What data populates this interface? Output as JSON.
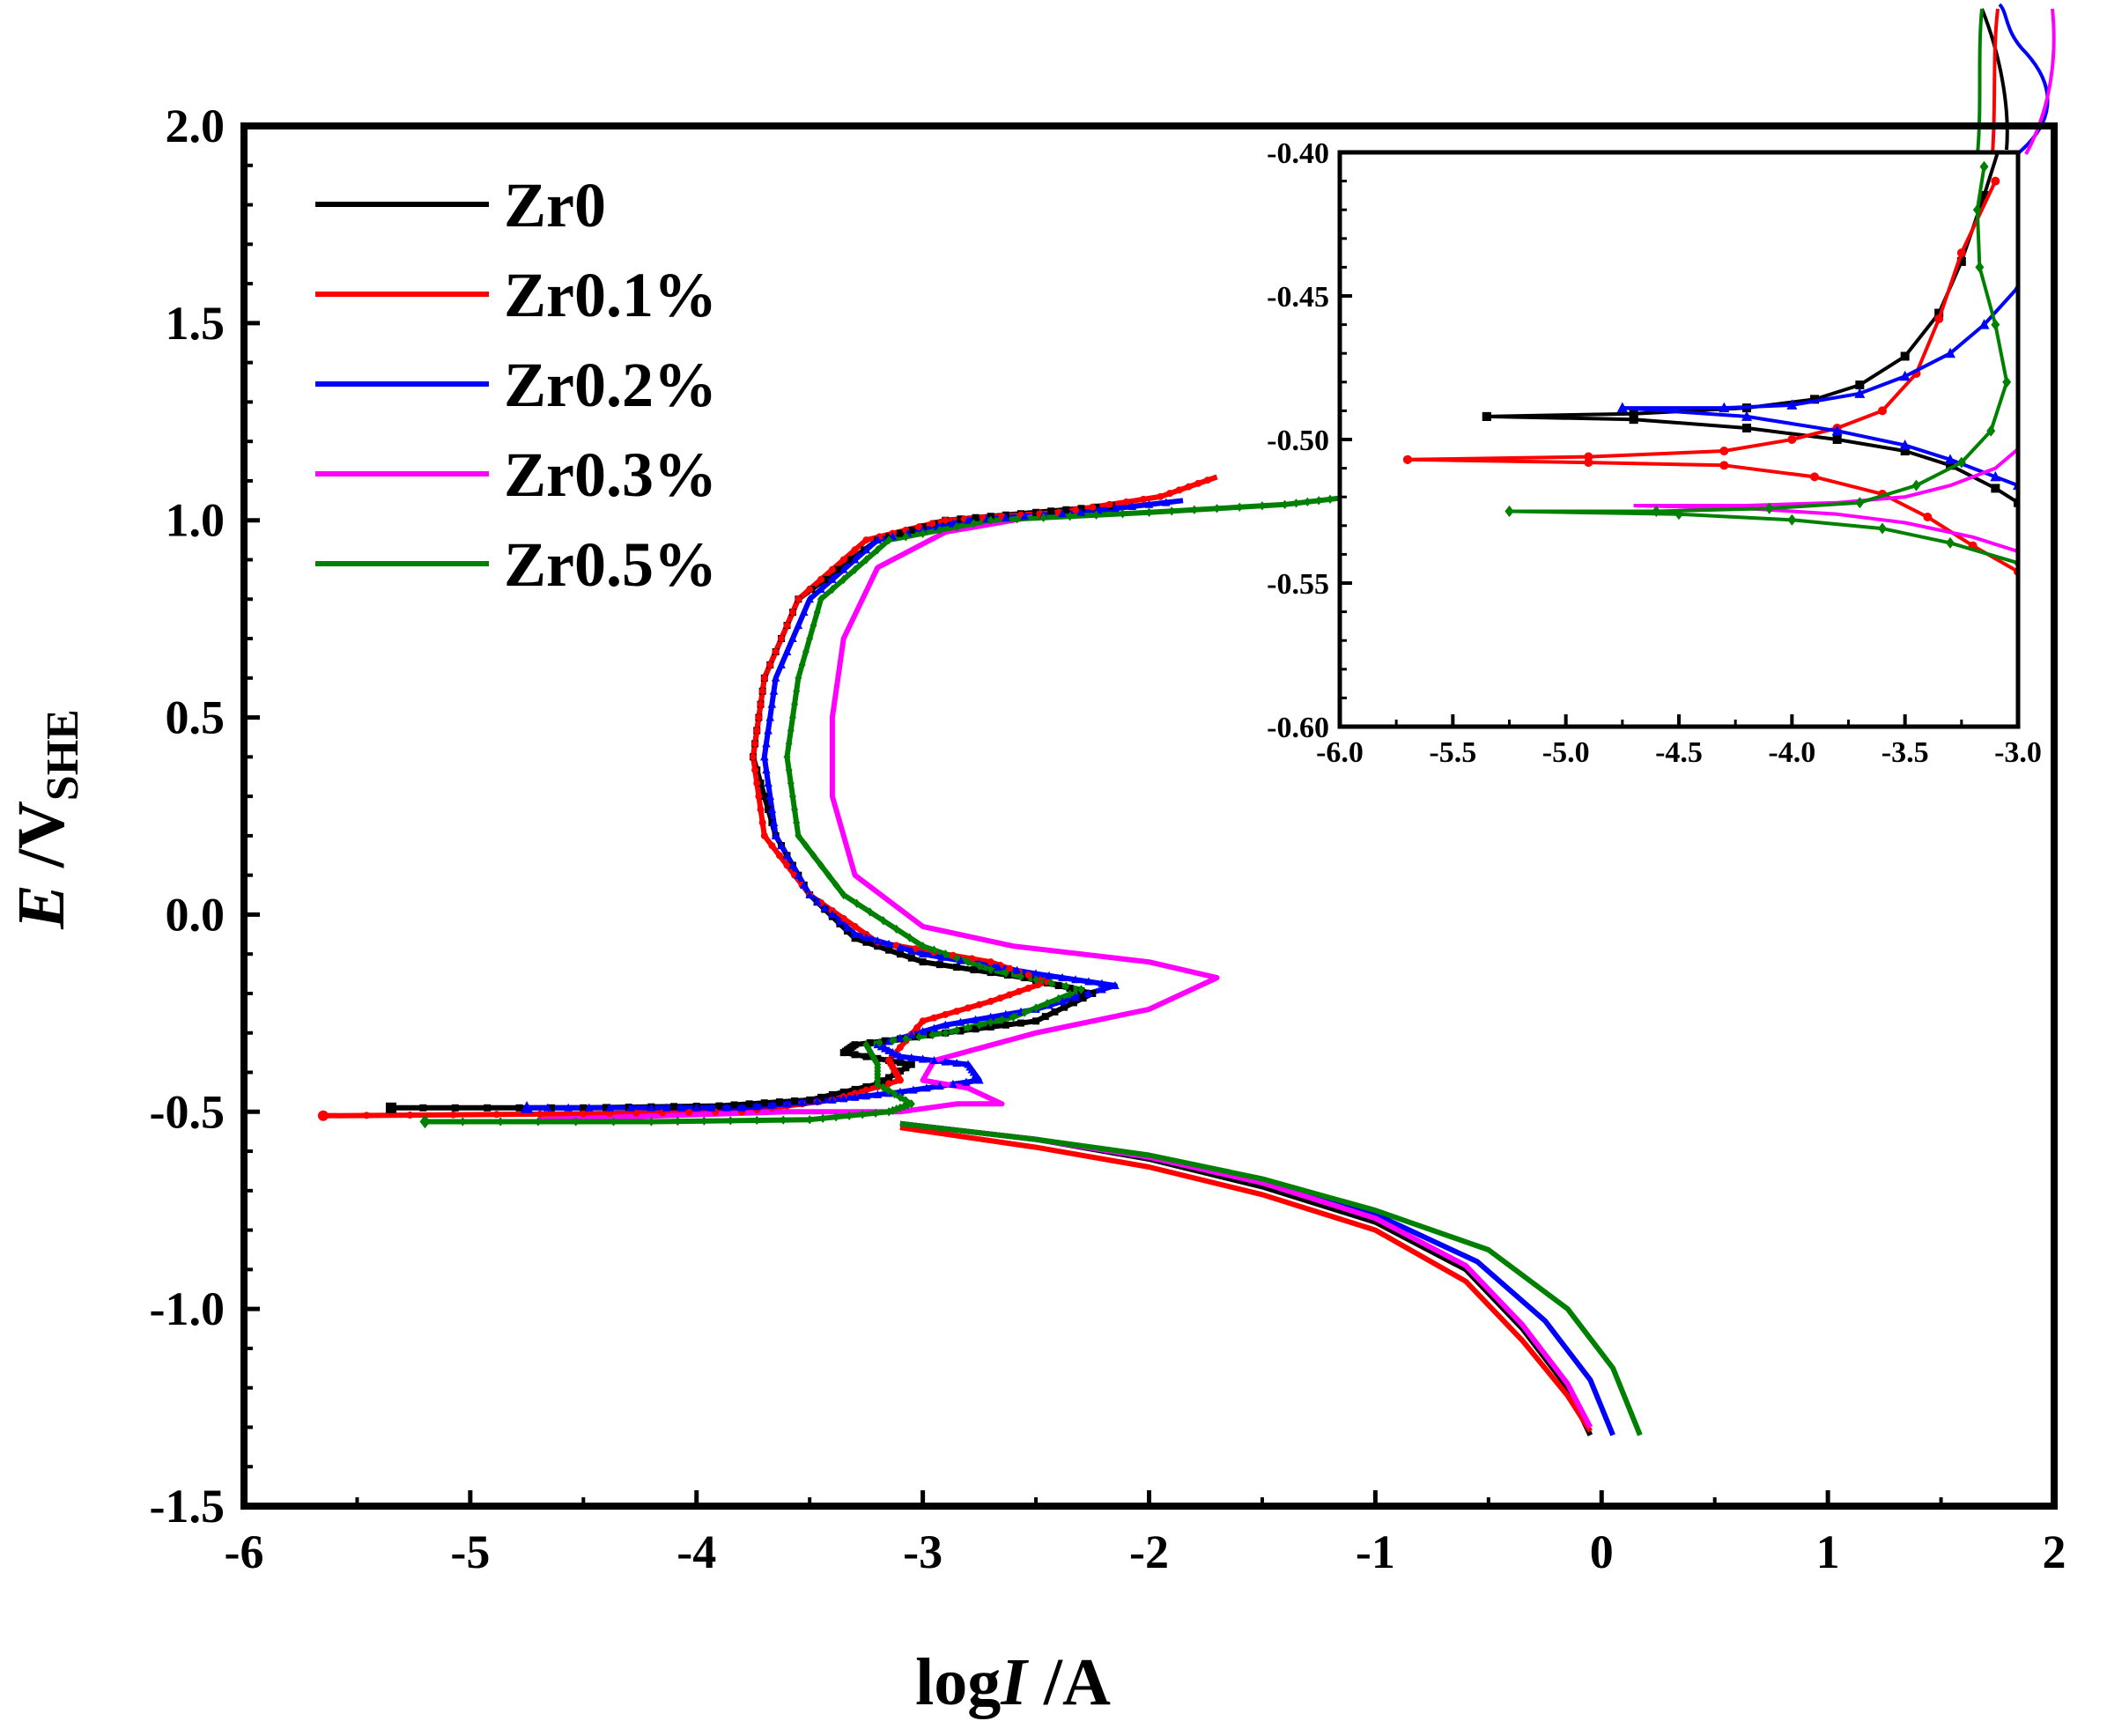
{
  "chart_data": {
    "type": "line",
    "xlabel_parts": [
      "log",
      "I",
      " /A"
    ],
    "ylabel_parts": [
      "E",
      " /V",
      "SHE"
    ],
    "xlim": [
      -6,
      2
    ],
    "ylim": [
      -1.5,
      2.0
    ],
    "x_ticks": [
      "-6",
      "-5",
      "-4",
      "-3",
      "-2",
      "-1",
      "0",
      "1",
      "2"
    ],
    "y_ticks": [
      "-1.5",
      "-1.0",
      "-0.5",
      "0.0",
      "0.5",
      "1.0",
      "1.5",
      "2.0"
    ],
    "colors": {
      "Zr0": "#000000",
      "Zr0.1%": "#ff0000",
      "Zr0.2%": "#0000ff",
      "Zr0.3%": "#ff00ff",
      "Zr0.5%": "#008000"
    },
    "legend": [
      "Zr0",
      "Zr0.1%",
      "Zr0.2%",
      "Zr0.3%",
      "Zr0.5%"
    ],
    "series": [
      {
        "name": "Zr0",
        "marker": "square",
        "points": [
          [
            -5.35,
            -0.49
          ],
          [
            -4.5,
            -0.49
          ],
          [
            -3.9,
            -0.485
          ],
          [
            -3.5,
            -0.47
          ],
          [
            -3.2,
            -0.43
          ],
          [
            -3.05,
            -0.38
          ],
          [
            -3.35,
            -0.35
          ],
          [
            -3.3,
            -0.33
          ],
          [
            -2.9,
            -0.3
          ],
          [
            -2.5,
            -0.27
          ],
          [
            -2.25,
            -0.2
          ],
          [
            -2.55,
            -0.16
          ],
          [
            -3.0,
            -0.12
          ],
          [
            -3.3,
            -0.06
          ],
          [
            -3.5,
            0.05
          ],
          [
            -3.65,
            0.2
          ],
          [
            -3.75,
            0.4
          ],
          [
            -3.7,
            0.6
          ],
          [
            -3.55,
            0.8
          ],
          [
            -3.2,
            0.95
          ],
          [
            -2.9,
            1.0
          ],
          [
            -2.5,
            1.02
          ],
          [
            -2.1,
            1.04
          ]
        ]
      },
      {
        "name": "Zr0.1%",
        "marker": "circle",
        "points": [
          [
            -5.65,
            -0.51
          ],
          [
            -4.5,
            -0.505
          ],
          [
            -3.8,
            -0.5
          ],
          [
            -3.4,
            -0.47
          ],
          [
            -3.1,
            -0.42
          ],
          [
            -3.15,
            -0.37
          ],
          [
            -3.0,
            -0.27
          ],
          [
            -2.7,
            -0.22
          ],
          [
            -2.45,
            -0.17
          ],
          [
            -2.7,
            -0.12
          ],
          [
            -3.2,
            -0.07
          ],
          [
            -3.5,
            0.05
          ],
          [
            -3.7,
            0.2
          ],
          [
            -3.75,
            0.4
          ],
          [
            -3.7,
            0.6
          ],
          [
            -3.55,
            0.8
          ],
          [
            -3.25,
            0.95
          ],
          [
            -2.9,
            1.0
          ],
          [
            -2.4,
            1.02
          ],
          [
            -1.95,
            1.06
          ],
          [
            -1.7,
            1.11
          ]
        ]
      },
      {
        "name": "Zr0.2%",
        "marker": "triangle",
        "points": [
          [
            -4.75,
            -0.49
          ],
          [
            -4.2,
            -0.49
          ],
          [
            -3.8,
            -0.49
          ],
          [
            -3.4,
            -0.47
          ],
          [
            -3.1,
            -0.45
          ],
          [
            -2.75,
            -0.42
          ],
          [
            -2.8,
            -0.38
          ],
          [
            -3.1,
            -0.36
          ],
          [
            -3.2,
            -0.33
          ],
          [
            -2.9,
            -0.28
          ],
          [
            -2.5,
            -0.24
          ],
          [
            -2.15,
            -0.18
          ],
          [
            -2.5,
            -0.15
          ],
          [
            -3.0,
            -0.1
          ],
          [
            -3.3,
            -0.05
          ],
          [
            -3.5,
            0.05
          ],
          [
            -3.65,
            0.2
          ],
          [
            -3.7,
            0.4
          ],
          [
            -3.65,
            0.6
          ],
          [
            -3.5,
            0.8
          ],
          [
            -3.2,
            0.95
          ],
          [
            -2.8,
            1.0
          ],
          [
            -2.3,
            1.02
          ],
          [
            -1.85,
            1.05
          ]
        ]
      },
      {
        "name": "Zr0.3%",
        "marker": "none",
        "points": [
          [
            -4.7,
            -0.52
          ],
          [
            -3.6,
            -0.5
          ],
          [
            -3.1,
            -0.5
          ],
          [
            -2.85,
            -0.48
          ],
          [
            -2.65,
            -0.48
          ],
          [
            -2.8,
            -0.44
          ],
          [
            -3.0,
            -0.42
          ],
          [
            -2.95,
            -0.37
          ],
          [
            -2.5,
            -0.3
          ],
          [
            -2.0,
            -0.24
          ],
          [
            -1.7,
            -0.16
          ],
          [
            -2.0,
            -0.12
          ],
          [
            -2.6,
            -0.08
          ],
          [
            -3.0,
            -0.03
          ],
          [
            -3.3,
            0.1
          ],
          [
            -3.4,
            0.3
          ],
          [
            -3.4,
            0.5
          ],
          [
            -3.35,
            0.7
          ],
          [
            -3.2,
            0.88
          ],
          [
            -2.9,
            0.97
          ],
          [
            -2.5,
            1.01
          ]
        ]
      },
      {
        "name": "Zr0.5%",
        "marker": "diamond",
        "points": [
          [
            -5.2,
            -0.525
          ],
          [
            -4.2,
            -0.525
          ],
          [
            -3.5,
            -0.52
          ],
          [
            -3.15,
            -0.5
          ],
          [
            -3.05,
            -0.48
          ],
          [
            -3.2,
            -0.43
          ],
          [
            -3.2,
            -0.38
          ],
          [
            -3.25,
            -0.33
          ],
          [
            -2.9,
            -0.3
          ],
          [
            -2.6,
            -0.26
          ],
          [
            -2.3,
            -0.19
          ],
          [
            -2.7,
            -0.14
          ],
          [
            -3.0,
            -0.08
          ],
          [
            -3.35,
            0.05
          ],
          [
            -3.55,
            0.2
          ],
          [
            -3.6,
            0.4
          ],
          [
            -3.55,
            0.6
          ],
          [
            -3.45,
            0.8
          ],
          [
            -3.15,
            0.95
          ],
          [
            -2.7,
            1.0
          ],
          [
            -2.0,
            1.02
          ],
          [
            -1.4,
            1.04
          ],
          [
            -1.1,
            1.06
          ]
        ]
      }
    ],
    "cathodic_branches": [
      {
        "name": "Zr0",
        "points": [
          [
            -3.1,
            -0.53
          ],
          [
            -2.5,
            -0.57
          ],
          [
            -2.0,
            -0.62
          ],
          [
            -1.5,
            -0.69
          ],
          [
            -1.0,
            -0.78
          ],
          [
            -0.6,
            -0.9
          ],
          [
            -0.35,
            -1.05
          ],
          [
            -0.15,
            -1.2
          ],
          [
            -0.05,
            -1.32
          ]
        ]
      },
      {
        "name": "Zr0.1%",
        "points": [
          [
            -3.1,
            -0.54
          ],
          [
            -2.5,
            -0.59
          ],
          [
            -2.0,
            -0.64
          ],
          [
            -1.5,
            -0.71
          ],
          [
            -1.0,
            -0.8
          ],
          [
            -0.6,
            -0.93
          ],
          [
            -0.35,
            -1.08
          ],
          [
            -0.15,
            -1.22
          ],
          [
            -0.05,
            -1.31
          ]
        ]
      },
      {
        "name": "Zr0.2%",
        "points": [
          [
            -3.1,
            -0.53
          ],
          [
            -2.5,
            -0.57
          ],
          [
            -2.0,
            -0.615
          ],
          [
            -1.5,
            -0.68
          ],
          [
            -1.0,
            -0.76
          ],
          [
            -0.55,
            -0.88
          ],
          [
            -0.25,
            -1.03
          ],
          [
            -0.05,
            -1.18
          ],
          [
            0.05,
            -1.32
          ]
        ]
      },
      {
        "name": "Zr0.3%",
        "points": [
          [
            -3.1,
            -0.53
          ],
          [
            -2.5,
            -0.57
          ],
          [
            -2.0,
            -0.615
          ],
          [
            -1.5,
            -0.68
          ],
          [
            -1.0,
            -0.77
          ],
          [
            -0.6,
            -0.89
          ],
          [
            -0.35,
            -1.04
          ],
          [
            -0.15,
            -1.19
          ],
          [
            -0.05,
            -1.3
          ]
        ]
      },
      {
        "name": "Zr0.5%",
        "points": [
          [
            -3.1,
            -0.53
          ],
          [
            -2.5,
            -0.57
          ],
          [
            -2.0,
            -0.61
          ],
          [
            -1.5,
            -0.67
          ],
          [
            -1.0,
            -0.75
          ],
          [
            -0.5,
            -0.85
          ],
          [
            -0.15,
            -1.0
          ],
          [
            0.05,
            -1.15
          ],
          [
            0.17,
            -1.32
          ]
        ]
      }
    ],
    "inset": {
      "xlim": [
        -6.0,
        -3.0
      ],
      "ylim": [
        -0.6,
        -0.4
      ],
      "x_ticks": [
        "-6.0",
        "-5.5",
        "-5.0",
        "-4.5",
        "-4.0",
        "-3.5",
        "-3.0"
      ],
      "y_ticks": [
        "-0.60",
        "-0.55",
        "-0.50",
        "-0.45",
        "-0.40"
      ],
      "series": [
        {
          "name": "Zr0",
          "anodic": [
            [
              -5.35,
              -0.492
            ],
            [
              -4.7,
              -0.491
            ],
            [
              -4.2,
              -0.489
            ],
            [
              -3.9,
              -0.486
            ],
            [
              -3.7,
              -0.481
            ],
            [
              -3.5,
              -0.471
            ],
            [
              -3.35,
              -0.456
            ],
            [
              -3.25,
              -0.438
            ],
            [
              -3.15,
              -0.415
            ],
            [
              -3.05,
              -0.39
            ]
          ],
          "cathodic": [
            [
              -5.35,
              -0.492
            ],
            [
              -4.7,
              -0.493
            ],
            [
              -4.2,
              -0.496
            ],
            [
              -3.8,
              -0.5
            ],
            [
              -3.5,
              -0.504
            ],
            [
              -3.3,
              -0.509
            ],
            [
              -3.1,
              -0.517
            ],
            [
              -3.0,
              -0.522
            ]
          ]
        },
        {
          "name": "Zr0.1%",
          "anodic": [
            [
              -5.7,
              -0.507
            ],
            [
              -4.9,
              -0.506
            ],
            [
              -4.3,
              -0.504
            ],
            [
              -4.0,
              -0.5
            ],
            [
              -3.8,
              -0.496
            ],
            [
              -3.6,
              -0.49
            ],
            [
              -3.45,
              -0.477
            ],
            [
              -3.35,
              -0.458
            ],
            [
              -3.25,
              -0.435
            ],
            [
              -3.1,
              -0.41
            ]
          ],
          "cathodic": [
            [
              -5.7,
              -0.507
            ],
            [
              -4.9,
              -0.508
            ],
            [
              -4.3,
              -0.509
            ],
            [
              -3.9,
              -0.513
            ],
            [
              -3.6,
              -0.519
            ],
            [
              -3.4,
              -0.527
            ],
            [
              -3.2,
              -0.537
            ],
            [
              -3.0,
              -0.546
            ]
          ]
        },
        {
          "name": "Zr0.2%",
          "anodic": [
            [
              -4.75,
              -0.489
            ],
            [
              -4.3,
              -0.489
            ],
            [
              -4.0,
              -0.488
            ],
            [
              -3.7,
              -0.484
            ],
            [
              -3.5,
              -0.478
            ],
            [
              -3.3,
              -0.47
            ],
            [
              -3.15,
              -0.46
            ],
            [
              -3.0,
              -0.447
            ]
          ],
          "cathodic": [
            [
              -4.75,
              -0.489
            ],
            [
              -4.2,
              -0.492
            ],
            [
              -3.8,
              -0.497
            ],
            [
              -3.5,
              -0.502
            ],
            [
              -3.3,
              -0.507
            ],
            [
              -3.1,
              -0.513
            ],
            [
              -3.0,
              -0.516
            ]
          ]
        },
        {
          "name": "Zr0.3%",
          "anodic": [
            [
              -4.7,
              -0.523
            ],
            [
              -4.2,
              -0.523
            ],
            [
              -3.8,
              -0.522
            ],
            [
              -3.5,
              -0.52
            ],
            [
              -3.3,
              -0.516
            ],
            [
              -3.1,
              -0.51
            ],
            [
              -2.95,
              -0.5
            ]
          ],
          "cathodic": [
            [
              -4.7,
              -0.523
            ],
            [
              -4.2,
              -0.524
            ],
            [
              -3.8,
              -0.526
            ],
            [
              -3.5,
              -0.529
            ],
            [
              -3.2,
              -0.534
            ],
            [
              -3.0,
              -0.539
            ]
          ]
        },
        {
          "name": "Zr0.5%",
          "anodic": [
            [
              -5.25,
              -0.525
            ],
            [
              -4.6,
              -0.525
            ],
            [
              -4.1,
              -0.524
            ],
            [
              -3.7,
              -0.522
            ],
            [
              -3.45,
              -0.516
            ],
            [
              -3.25,
              -0.508
            ],
            [
              -3.12,
              -0.497
            ],
            [
              -3.05,
              -0.48
            ],
            [
              -3.1,
              -0.46
            ],
            [
              -3.17,
              -0.44
            ],
            [
              -3.18,
              -0.42
            ],
            [
              -3.15,
              -0.405
            ]
          ],
          "cathodic": [
            [
              -5.25,
              -0.525
            ],
            [
              -4.5,
              -0.526
            ],
            [
              -4.0,
              -0.528
            ],
            [
              -3.6,
              -0.531
            ],
            [
              -3.3,
              -0.536
            ],
            [
              -3.0,
              -0.543
            ]
          ]
        }
      ]
    }
  }
}
